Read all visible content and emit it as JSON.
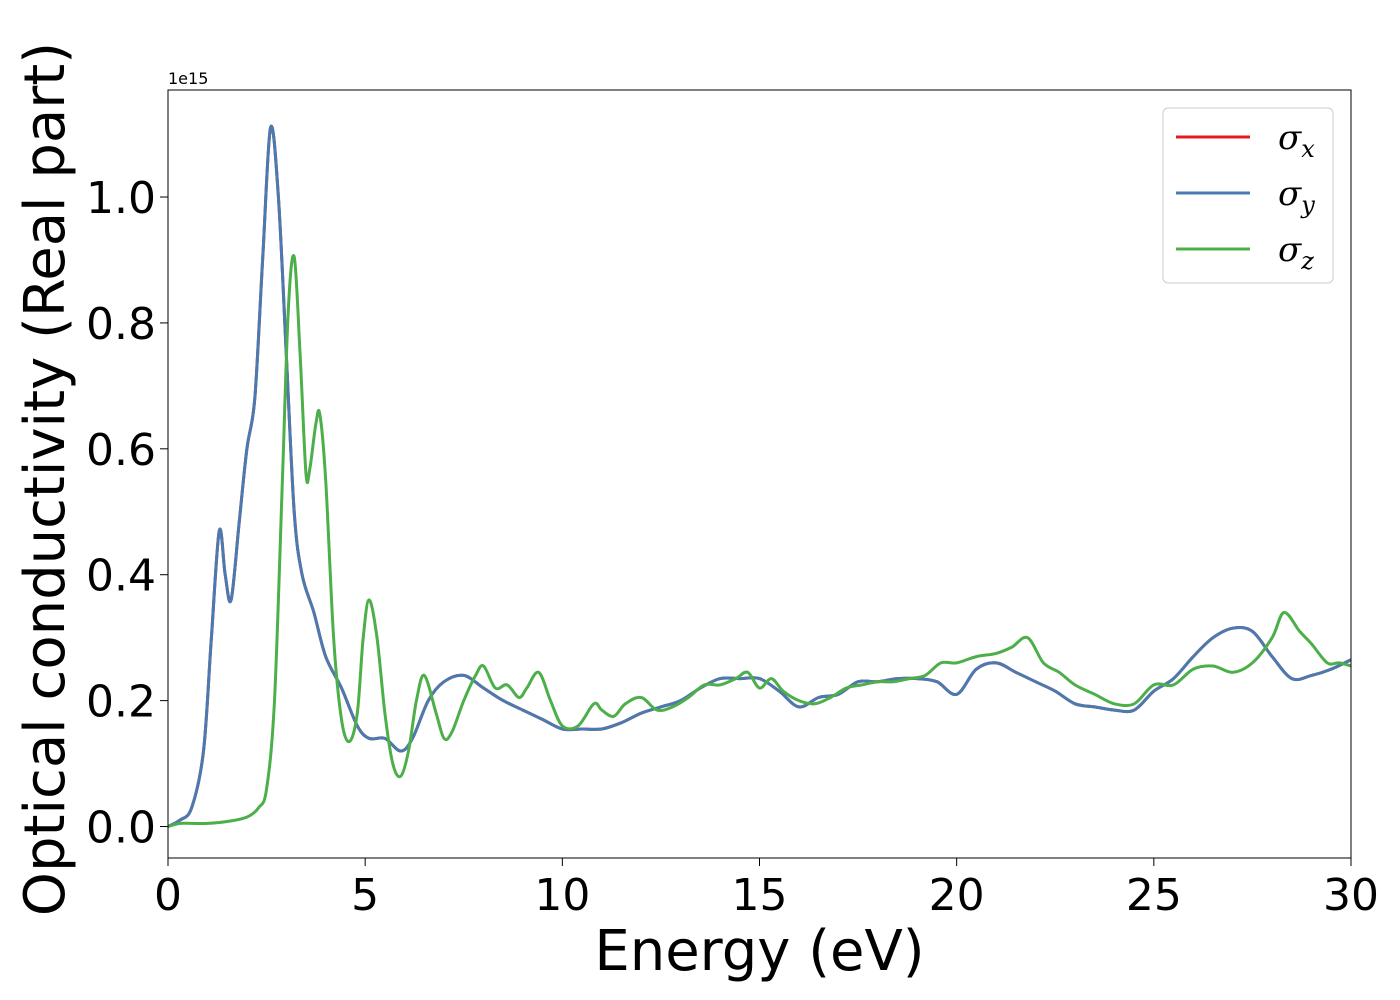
{
  "chart_data": {
    "type": "line",
    "title": "",
    "xlabel": "Energy (eV)",
    "ylabel": "Optical conductivity (Real part)",
    "y_offset_text": "1e15",
    "xlim": [
      0,
      30
    ],
    "ylim": [
      -0.05,
      1.17
    ],
    "xticks": [
      0,
      5,
      10,
      15,
      20,
      25,
      30
    ],
    "xtick_labels": [
      "0",
      "5",
      "10",
      "15",
      "20",
      "25",
      "30"
    ],
    "yticks": [
      0.0,
      0.2,
      0.4,
      0.6,
      0.8,
      1.0
    ],
    "ytick_labels": [
      "0.0",
      "0.2",
      "0.4",
      "0.6",
      "0.8",
      "1.0"
    ],
    "grid": false,
    "legend_position": "top-right",
    "series": [
      {
        "name": "σx",
        "symbol": "σ",
        "subscript": "x",
        "color": "#e41a1c",
        "x": [
          0,
          0.3,
          0.6,
          0.9,
          1.1,
          1.3,
          1.45,
          1.6,
          1.8,
          2.0,
          2.2,
          2.4,
          2.6,
          2.8,
          3.0,
          3.2,
          3.4,
          3.7,
          4.0,
          4.4,
          4.8,
          5.1,
          5.5,
          5.9,
          6.2,
          6.6,
          7.0,
          7.5,
          8.0,
          8.5,
          9.0,
          9.5,
          10.0,
          10.5,
          11.0,
          11.5,
          12.0,
          12.5,
          13.0,
          13.5,
          14.0,
          14.5,
          15.0,
          15.5,
          16.0,
          16.5,
          17.0,
          17.5,
          18.0,
          18.5,
          19.0,
          19.5,
          20.0,
          20.5,
          21.0,
          21.5,
          22.0,
          22.5,
          23.0,
          23.5,
          24.0,
          24.5,
          25.0,
          25.5,
          26.0,
          26.5,
          27.0,
          27.5,
          28.0,
          28.5,
          29.0,
          29.5,
          30.0
        ],
        "y": [
          0,
          0.01,
          0.03,
          0.12,
          0.3,
          0.47,
          0.4,
          0.36,
          0.48,
          0.6,
          0.68,
          0.9,
          1.11,
          1.0,
          0.75,
          0.5,
          0.4,
          0.34,
          0.27,
          0.22,
          0.16,
          0.14,
          0.14,
          0.12,
          0.14,
          0.2,
          0.23,
          0.24,
          0.22,
          0.2,
          0.185,
          0.17,
          0.155,
          0.155,
          0.155,
          0.165,
          0.18,
          0.19,
          0.2,
          0.22,
          0.235,
          0.235,
          0.235,
          0.215,
          0.19,
          0.205,
          0.21,
          0.23,
          0.23,
          0.235,
          0.235,
          0.23,
          0.21,
          0.25,
          0.26,
          0.245,
          0.23,
          0.215,
          0.195,
          0.19,
          0.185,
          0.185,
          0.215,
          0.235,
          0.27,
          0.3,
          0.315,
          0.31,
          0.27,
          0.235,
          0.24,
          0.25,
          0.265
        ]
      },
      {
        "name": "σy",
        "symbol": "σ",
        "subscript": "y",
        "color": "#4a7bb0",
        "x": [
          0,
          0.3,
          0.6,
          0.9,
          1.1,
          1.3,
          1.45,
          1.6,
          1.8,
          2.0,
          2.2,
          2.4,
          2.6,
          2.8,
          3.0,
          3.2,
          3.4,
          3.7,
          4.0,
          4.4,
          4.8,
          5.1,
          5.5,
          5.9,
          6.2,
          6.6,
          7.0,
          7.5,
          8.0,
          8.5,
          9.0,
          9.5,
          10.0,
          10.5,
          11.0,
          11.5,
          12.0,
          12.5,
          13.0,
          13.5,
          14.0,
          14.5,
          15.0,
          15.5,
          16.0,
          16.5,
          17.0,
          17.5,
          18.0,
          18.5,
          19.0,
          19.5,
          20.0,
          20.5,
          21.0,
          21.5,
          22.0,
          22.5,
          23.0,
          23.5,
          24.0,
          24.5,
          25.0,
          25.5,
          26.0,
          26.5,
          27.0,
          27.5,
          28.0,
          28.5,
          29.0,
          29.5,
          30.0
        ],
        "y": [
          0,
          0.01,
          0.03,
          0.12,
          0.3,
          0.47,
          0.4,
          0.36,
          0.48,
          0.6,
          0.68,
          0.9,
          1.11,
          1.0,
          0.75,
          0.5,
          0.4,
          0.34,
          0.27,
          0.22,
          0.16,
          0.14,
          0.14,
          0.12,
          0.14,
          0.2,
          0.23,
          0.24,
          0.22,
          0.2,
          0.185,
          0.17,
          0.155,
          0.155,
          0.155,
          0.165,
          0.18,
          0.19,
          0.2,
          0.22,
          0.235,
          0.235,
          0.235,
          0.215,
          0.19,
          0.205,
          0.21,
          0.23,
          0.23,
          0.235,
          0.235,
          0.23,
          0.21,
          0.25,
          0.26,
          0.245,
          0.23,
          0.215,
          0.195,
          0.19,
          0.185,
          0.185,
          0.215,
          0.235,
          0.27,
          0.3,
          0.315,
          0.31,
          0.27,
          0.235,
          0.24,
          0.25,
          0.265
        ]
      },
      {
        "name": "σz",
        "symbol": "σ",
        "subscript": "z",
        "color": "#4daf4a",
        "x": [
          0,
          0.3,
          0.6,
          1.0,
          1.5,
          2.0,
          2.3,
          2.5,
          2.7,
          2.9,
          3.05,
          3.2,
          3.35,
          3.5,
          3.6,
          3.75,
          3.85,
          4.0,
          4.2,
          4.4,
          4.6,
          4.8,
          4.95,
          5.1,
          5.3,
          5.5,
          5.7,
          5.9,
          6.1,
          6.3,
          6.5,
          6.8,
          7.0,
          7.2,
          7.5,
          7.8,
          8.0,
          8.3,
          8.6,
          8.9,
          9.1,
          9.4,
          9.7,
          10.0,
          10.4,
          10.8,
          11.0,
          11.3,
          11.6,
          12.0,
          12.4,
          12.8,
          13.2,
          13.6,
          14.0,
          14.4,
          14.7,
          15.0,
          15.3,
          15.6,
          16.0,
          16.4,
          16.8,
          17.2,
          17.6,
          18.0,
          18.4,
          18.8,
          19.2,
          19.6,
          20.0,
          20.5,
          21.0,
          21.4,
          21.8,
          22.2,
          22.6,
          23.0,
          23.5,
          24.0,
          24.5,
          25.0,
          25.5,
          26.0,
          26.5,
          27.0,
          27.5,
          28.0,
          28.3,
          28.7,
          29.0,
          29.4,
          29.7,
          30.0
        ],
        "y": [
          0,
          0.005,
          0.005,
          0.005,
          0.008,
          0.015,
          0.03,
          0.06,
          0.2,
          0.55,
          0.82,
          0.905,
          0.75,
          0.56,
          0.57,
          0.64,
          0.655,
          0.55,
          0.3,
          0.17,
          0.135,
          0.18,
          0.3,
          0.36,
          0.3,
          0.18,
          0.1,
          0.08,
          0.12,
          0.2,
          0.24,
          0.18,
          0.14,
          0.15,
          0.2,
          0.24,
          0.255,
          0.22,
          0.225,
          0.205,
          0.22,
          0.245,
          0.2,
          0.16,
          0.16,
          0.195,
          0.185,
          0.175,
          0.195,
          0.205,
          0.185,
          0.19,
          0.205,
          0.225,
          0.225,
          0.235,
          0.245,
          0.22,
          0.235,
          0.215,
          0.2,
          0.195,
          0.205,
          0.22,
          0.225,
          0.23,
          0.23,
          0.235,
          0.24,
          0.26,
          0.26,
          0.27,
          0.275,
          0.285,
          0.3,
          0.26,
          0.245,
          0.225,
          0.21,
          0.195,
          0.195,
          0.225,
          0.225,
          0.25,
          0.255,
          0.245,
          0.26,
          0.3,
          0.34,
          0.31,
          0.29,
          0.26,
          0.26,
          0.255
        ]
      }
    ]
  }
}
